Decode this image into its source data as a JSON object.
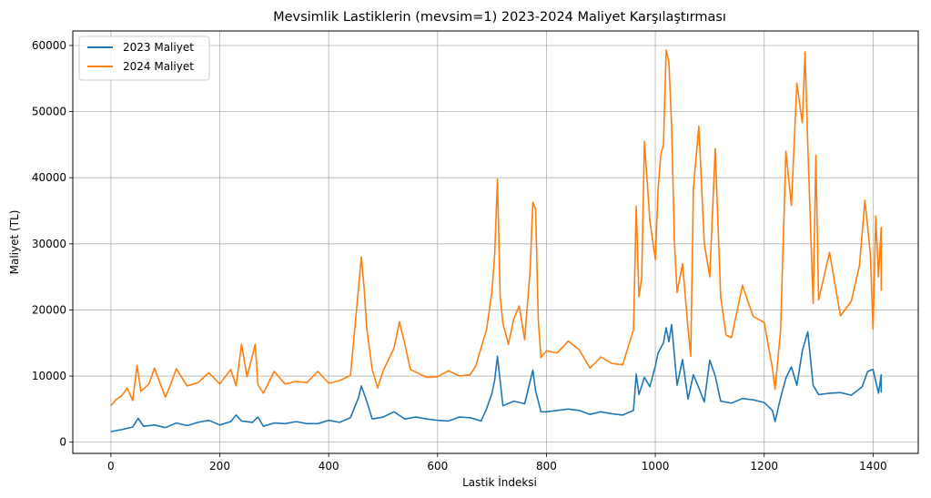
{
  "chart_data": {
    "type": "line",
    "title": "Mevsimlik Lastiklerin (mevsim=1) 2023-2024 Maliyet Karşılaştırması",
    "xlabel": "Lastik İndeksi",
    "ylabel": "Maliyet (TL)",
    "xlim": [
      -70,
      1483
    ],
    "ylim": [
      -1700,
      62200
    ],
    "xticks": [
      0,
      200,
      400,
      600,
      800,
      1000,
      1200,
      1400
    ],
    "yticks": [
      0,
      10000,
      20000,
      30000,
      40000,
      50000,
      60000
    ],
    "xtick_labels": [
      "0",
      "200",
      "400",
      "600",
      "800",
      "1000",
      "1200",
      "1400"
    ],
    "ytick_labels": [
      "0",
      "10000",
      "20000",
      "30000",
      "40000",
      "50000",
      "60000"
    ],
    "grid": true,
    "legend_position": "top-left",
    "series": [
      {
        "name": "2023 Maliyet",
        "color": "#1f77b4",
        "points": [
          [
            0,
            1600
          ],
          [
            20,
            1900
          ],
          [
            40,
            2300
          ],
          [
            50,
            3600
          ],
          [
            60,
            2400
          ],
          [
            80,
            2600
          ],
          [
            100,
            2200
          ],
          [
            120,
            2900
          ],
          [
            140,
            2500
          ],
          [
            160,
            3000
          ],
          [
            180,
            3300
          ],
          [
            200,
            2600
          ],
          [
            220,
            3100
          ],
          [
            230,
            4100
          ],
          [
            240,
            3200
          ],
          [
            260,
            3000
          ],
          [
            270,
            3800
          ],
          [
            280,
            2400
          ],
          [
            300,
            2900
          ],
          [
            320,
            2800
          ],
          [
            340,
            3100
          ],
          [
            360,
            2800
          ],
          [
            380,
            2800
          ],
          [
            400,
            3300
          ],
          [
            420,
            3000
          ],
          [
            440,
            3700
          ],
          [
            455,
            6800
          ],
          [
            460,
            8500
          ],
          [
            470,
            6200
          ],
          [
            480,
            3500
          ],
          [
            500,
            3800
          ],
          [
            520,
            4600
          ],
          [
            540,
            3500
          ],
          [
            560,
            3800
          ],
          [
            580,
            3500
          ],
          [
            600,
            3300
          ],
          [
            620,
            3200
          ],
          [
            640,
            3800
          ],
          [
            660,
            3700
          ],
          [
            680,
            3200
          ],
          [
            690,
            5000
          ],
          [
            700,
            7400
          ],
          [
            705,
            9400
          ],
          [
            710,
            13000
          ],
          [
            720,
            5500
          ],
          [
            740,
            6200
          ],
          [
            760,
            5800
          ],
          [
            775,
            10900
          ],
          [
            780,
            7800
          ],
          [
            790,
            4600
          ],
          [
            800,
            4600
          ],
          [
            820,
            4800
          ],
          [
            840,
            5000
          ],
          [
            860,
            4800
          ],
          [
            880,
            4200
          ],
          [
            900,
            4600
          ],
          [
            920,
            4300
          ],
          [
            940,
            4100
          ],
          [
            960,
            4800
          ],
          [
            965,
            10300
          ],
          [
            970,
            7200
          ],
          [
            980,
            9800
          ],
          [
            990,
            8400
          ],
          [
            1000,
            11500
          ],
          [
            1005,
            13500
          ],
          [
            1015,
            15000
          ],
          [
            1020,
            17300
          ],
          [
            1025,
            15200
          ],
          [
            1030,
            17800
          ],
          [
            1040,
            8600
          ],
          [
            1050,
            12500
          ],
          [
            1060,
            6500
          ],
          [
            1070,
            10200
          ],
          [
            1080,
            8200
          ],
          [
            1090,
            6100
          ],
          [
            1100,
            12400
          ],
          [
            1110,
            10000
          ],
          [
            1120,
            6200
          ],
          [
            1140,
            5900
          ],
          [
            1160,
            6600
          ],
          [
            1180,
            6400
          ],
          [
            1200,
            6000
          ],
          [
            1215,
            4800
          ],
          [
            1220,
            3100
          ],
          [
            1230,
            6700
          ],
          [
            1240,
            9700
          ],
          [
            1250,
            11400
          ],
          [
            1260,
            8600
          ],
          [
            1270,
            13800
          ],
          [
            1280,
            16700
          ],
          [
            1290,
            8600
          ],
          [
            1300,
            7200
          ],
          [
            1320,
            7400
          ],
          [
            1340,
            7500
          ],
          [
            1360,
            7100
          ],
          [
            1380,
            8400
          ],
          [
            1390,
            10700
          ],
          [
            1400,
            11000
          ],
          [
            1410,
            7400
          ],
          [
            1415,
            10200
          ],
          [
            1415,
            7500
          ]
        ]
      },
      {
        "name": "2024 Maliyet",
        "color": "#ff7f0e",
        "points": [
          [
            0,
            5500
          ],
          [
            10,
            6500
          ],
          [
            20,
            7000
          ],
          [
            30,
            8200
          ],
          [
            40,
            6300
          ],
          [
            48,
            11600
          ],
          [
            55,
            7700
          ],
          [
            70,
            8800
          ],
          [
            80,
            11200
          ],
          [
            100,
            6800
          ],
          [
            110,
            8800
          ],
          [
            120,
            11100
          ],
          [
            140,
            8500
          ],
          [
            160,
            9000
          ],
          [
            180,
            10500
          ],
          [
            200,
            8800
          ],
          [
            220,
            11000
          ],
          [
            230,
            8500
          ],
          [
            240,
            14800
          ],
          [
            250,
            9900
          ],
          [
            265,
            14800
          ],
          [
            270,
            8700
          ],
          [
            280,
            7400
          ],
          [
            300,
            10700
          ],
          [
            320,
            8800
          ],
          [
            340,
            9200
          ],
          [
            360,
            9000
          ],
          [
            380,
            10700
          ],
          [
            400,
            8900
          ],
          [
            420,
            9300
          ],
          [
            440,
            10100
          ],
          [
            455,
            23500
          ],
          [
            460,
            28000
          ],
          [
            465,
            23500
          ],
          [
            470,
            17200
          ],
          [
            480,
            11000
          ],
          [
            490,
            8200
          ],
          [
            500,
            10800
          ],
          [
            520,
            14200
          ],
          [
            530,
            18200
          ],
          [
            540,
            14800
          ],
          [
            550,
            11000
          ],
          [
            560,
            10600
          ],
          [
            580,
            9800
          ],
          [
            600,
            9900
          ],
          [
            620,
            10800
          ],
          [
            640,
            10000
          ],
          [
            660,
            10200
          ],
          [
            670,
            11500
          ],
          [
            690,
            17000
          ],
          [
            700,
            22800
          ],
          [
            705,
            28500
          ],
          [
            710,
            39800
          ],
          [
            715,
            22000
          ],
          [
            720,
            18000
          ],
          [
            730,
            14800
          ],
          [
            740,
            18600
          ],
          [
            750,
            20600
          ],
          [
            760,
            15500
          ],
          [
            770,
            26000
          ],
          [
            775,
            36300
          ],
          [
            780,
            35300
          ],
          [
            785,
            18400
          ],
          [
            790,
            12800
          ],
          [
            800,
            13800
          ],
          [
            820,
            13500
          ],
          [
            840,
            15300
          ],
          [
            860,
            14000
          ],
          [
            880,
            11200
          ],
          [
            900,
            12900
          ],
          [
            920,
            11900
          ],
          [
            940,
            11700
          ],
          [
            960,
            17000
          ],
          [
            965,
            35700
          ],
          [
            970,
            22000
          ],
          [
            975,
            24800
          ],
          [
            980,
            45500
          ],
          [
            990,
            33500
          ],
          [
            1000,
            27600
          ],
          [
            1005,
            38200
          ],
          [
            1010,
            43500
          ],
          [
            1015,
            45000
          ],
          [
            1020,
            59300
          ],
          [
            1025,
            57500
          ],
          [
            1030,
            47800
          ],
          [
            1035,
            30500
          ],
          [
            1040,
            22600
          ],
          [
            1050,
            27000
          ],
          [
            1060,
            17200
          ],
          [
            1065,
            13000
          ],
          [
            1070,
            38300
          ],
          [
            1080,
            47800
          ],
          [
            1090,
            30000
          ],
          [
            1100,
            25000
          ],
          [
            1110,
            44400
          ],
          [
            1120,
            22000
          ],
          [
            1130,
            16200
          ],
          [
            1140,
            15800
          ],
          [
            1160,
            23700
          ],
          [
            1180,
            19000
          ],
          [
            1200,
            18100
          ],
          [
            1215,
            11200
          ],
          [
            1220,
            8000
          ],
          [
            1230,
            16900
          ],
          [
            1240,
            44000
          ],
          [
            1250,
            35800
          ],
          [
            1260,
            54300
          ],
          [
            1270,
            48300
          ],
          [
            1275,
            59000
          ],
          [
            1280,
            45000
          ],
          [
            1290,
            21000
          ],
          [
            1295,
            43400
          ],
          [
            1300,
            21500
          ],
          [
            1320,
            28700
          ],
          [
            1340,
            19100
          ],
          [
            1360,
            21300
          ],
          [
            1375,
            26700
          ],
          [
            1385,
            36600
          ],
          [
            1395,
            28400
          ],
          [
            1400,
            17100
          ],
          [
            1405,
            34200
          ],
          [
            1410,
            25000
          ],
          [
            1415,
            32500
          ],
          [
            1415,
            22900
          ]
        ]
      }
    ]
  }
}
